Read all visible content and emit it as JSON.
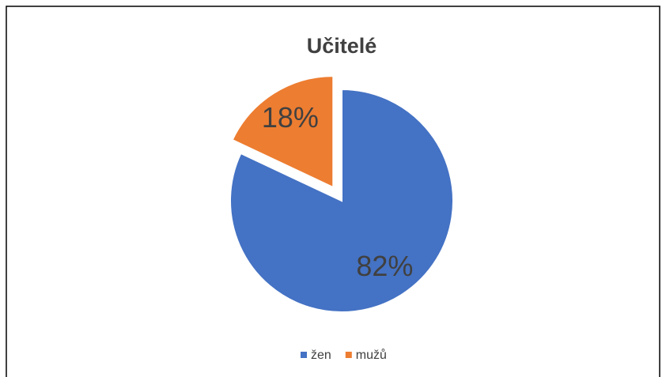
{
  "chart_data": {
    "type": "pie",
    "title": "Učitelé",
    "categories": [
      "žen",
      "mužů"
    ],
    "values": [
      82,
      18
    ],
    "value_labels": [
      "82%",
      "18%"
    ],
    "colors": [
      "#4472c4",
      "#ed7d31"
    ],
    "exploded": [
      false,
      true
    ],
    "legend": "bottom"
  }
}
